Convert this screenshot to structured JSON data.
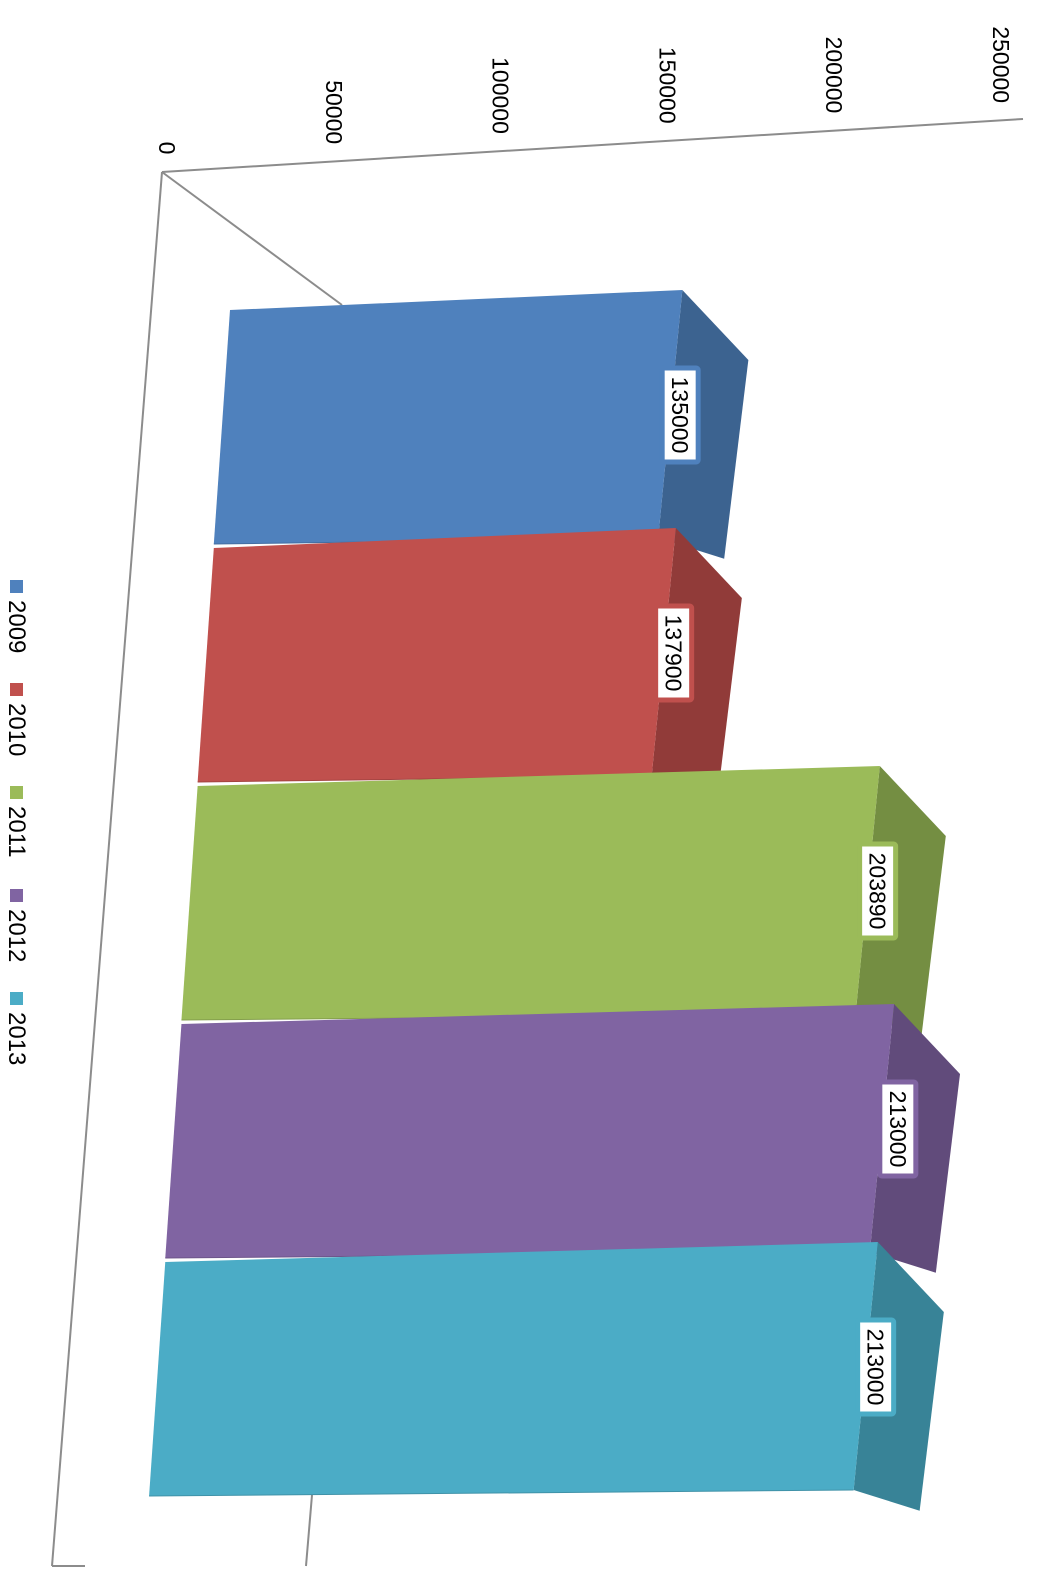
{
  "chart_data": {
    "type": "bar",
    "orientation": "3d-column-rotated-90",
    "title": "",
    "xlabel": "",
    "ylabel": "",
    "ylim": [
      0,
      250000
    ],
    "yticks": [
      "0",
      "50000",
      "100000",
      "150000",
      "200000",
      "250000"
    ],
    "grid": false,
    "legend_position": "bottom",
    "series": [
      {
        "name": "2009",
        "value": 135000,
        "label": "135000",
        "color": "#4f81bd",
        "side": "#3c6390"
      },
      {
        "name": "2010",
        "value": 137900,
        "label": "137900",
        "color": "#c0504d",
        "side": "#913b39"
      },
      {
        "name": "2011",
        "value": 203890,
        "label": "203890",
        "color": "#9bbb59",
        "side": "#748e42"
      },
      {
        "name": "2012",
        "value": 213000,
        "label": "213000",
        "color": "#8064a2",
        "side": "#614b7b"
      },
      {
        "name": "2013",
        "value": 213000,
        "label": "213000",
        "color": "#4bacc6",
        "side": "#388397"
      }
    ]
  }
}
